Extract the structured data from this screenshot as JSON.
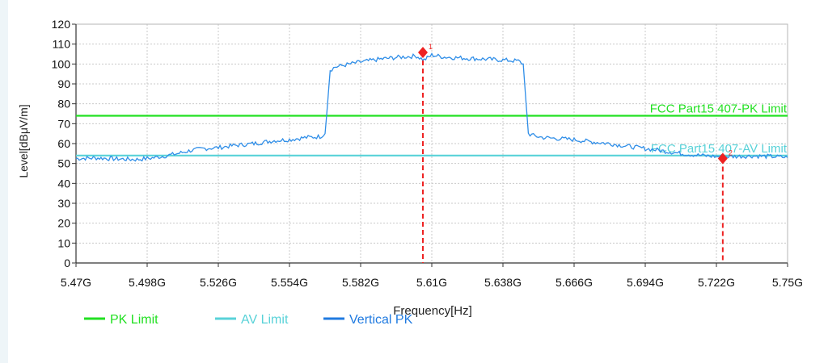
{
  "chart_data": {
    "type": "line",
    "xlabel": "Frequency[Hz]",
    "ylabel": "Level[dBμV/m]",
    "x_unit": "GHz",
    "xlim": [
      5.47,
      5.75
    ],
    "ylim": [
      0,
      120
    ],
    "x_ticks": [
      "5.47G",
      "5.498G",
      "5.526G",
      "5.554G",
      "5.582G",
      "5.61G",
      "5.638G",
      "5.666G",
      "5.694G",
      "5.722G",
      "5.75G"
    ],
    "y_ticks": [
      "0",
      "10",
      "20",
      "30",
      "40",
      "50",
      "60",
      "70",
      "80",
      "90",
      "100",
      "110",
      "120"
    ],
    "grid": true,
    "legend_position": "bottom",
    "limit_lines": [
      {
        "name": "PK Limit",
        "label": "FCC Part15 407-PK Limit",
        "value": 74,
        "color": "#22e022"
      },
      {
        "name": "AV Limit",
        "label": "FCC Part15 407-AV Limit",
        "value": 54,
        "color": "#58d2d8"
      }
    ],
    "series": [
      {
        "name": "Vertical PK",
        "color": "#2f8ee8",
        "x": [
          5.47,
          5.478,
          5.486,
          5.494,
          5.5,
          5.506,
          5.51,
          5.515,
          5.52,
          5.526,
          5.532,
          5.54,
          5.548,
          5.554,
          5.56,
          5.566,
          5.568,
          5.569,
          5.57,
          5.572,
          5.576,
          5.582,
          5.59,
          5.598,
          5.604,
          5.607,
          5.61,
          5.615,
          5.622,
          5.63,
          5.638,
          5.644,
          5.646,
          5.647,
          5.648,
          5.65,
          5.654,
          5.66,
          5.666,
          5.672,
          5.68,
          5.688,
          5.694,
          5.7,
          5.708,
          5.716,
          5.722,
          5.728,
          5.736,
          5.744,
          5.75
        ],
        "values": [
          52.5,
          52.8,
          52.3,
          52.0,
          52.8,
          54.0,
          55.0,
          56.5,
          57.5,
          58.0,
          59.0,
          60.0,
          61.5,
          62.0,
          63.0,
          63.5,
          65.0,
          80.0,
          97.0,
          98.5,
          99.5,
          101.0,
          102.5,
          103.5,
          104.0,
          102.0,
          104.5,
          103.5,
          103.0,
          102.5,
          102.0,
          101.5,
          100.0,
          82.0,
          65.0,
          64.0,
          63.0,
          62.5,
          62.0,
          61.0,
          60.0,
          58.5,
          57.5,
          56.5,
          55.0,
          54.0,
          53.5,
          53.5,
          53.8,
          53.5,
          53.0
        ]
      }
    ],
    "markers": [
      {
        "id": "1",
        "x": 5.6065,
        "y": 105.8,
        "color": "#ee2222"
      },
      {
        "id": "2",
        "x": 5.7245,
        "y": 52.5,
        "color": "#ee2222"
      }
    ],
    "legend": [
      {
        "label": "PK Limit",
        "color": "#22e022"
      },
      {
        "label": "AV Limit",
        "color": "#58d2d8"
      },
      {
        "label": "Vertical PK",
        "color": "#1f7ae0"
      }
    ]
  }
}
